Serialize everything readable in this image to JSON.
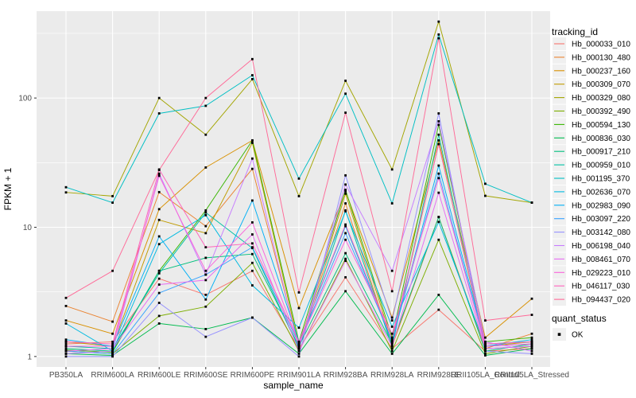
{
  "chart_data": {
    "type": "line",
    "xlabel": "sample_name",
    "ylabel": "FPKM + 1",
    "y_scale": "log10",
    "y_ticks": [
      1,
      10,
      100
    ],
    "ylim": [
      0.83,
      470
    ],
    "grid": true,
    "panel_bg": "#EBEBEB",
    "grid_color": "#FFFFFF",
    "point_color": "#000000",
    "categories": [
      "PB350LA",
      "RRIM600LA",
      "RRIM600LE",
      "RRIM600SE",
      "RRIM600PE",
      "RRIM901LA",
      "RRIM928BA",
      "RRIM928LA",
      "RRIM928LE",
      "RRII105LA_Control",
      "RRII105LA_Stressed"
    ],
    "legend": {
      "title": "tracking_id",
      "position": "right"
    },
    "quant_legend": {
      "title": "quant_status",
      "items": [
        {
          "label": "OK",
          "marker": "black-square"
        }
      ]
    },
    "series": [
      {
        "name": "Hb_000033_010",
        "color": "#F8766D",
        "values": [
          1.25,
          1.3,
          4.0,
          3.0,
          4.6,
          1.15,
          4.1,
          1.15,
          2.3,
          1.1,
          1.15
        ]
      },
      {
        "name": "Hb_000130_480",
        "color": "#EA8331",
        "values": [
          2.46,
          1.86,
          18.7,
          10.2,
          28.3,
          1.2,
          15.3,
          1.2,
          12,
          1.15,
          1.5
        ]
      },
      {
        "name": "Hb_000237_160",
        "color": "#D89000",
        "values": [
          1.9,
          1.5,
          13.8,
          29,
          47,
          2.37,
          19,
          2.0,
          47,
          1.4,
          2.8
        ]
      },
      {
        "name": "Hb_000309_070",
        "color": "#C09B00",
        "values": [
          1.3,
          1.2,
          11.4,
          9.0,
          45,
          1.2,
          18.2,
          1.3,
          44,
          1.2,
          1.3
        ]
      },
      {
        "name": "Hb_000329_080",
        "color": "#A3A500",
        "values": [
          18.6,
          17.4,
          100,
          52,
          140,
          17.4,
          136,
          28,
          390,
          17.5,
          15.5
        ]
      },
      {
        "name": "Hb_000392_490",
        "color": "#7CAE00",
        "values": [
          1.1,
          1.05,
          2.06,
          2.43,
          5.3,
          1.1,
          5.7,
          1.1,
          8.0,
          1.05,
          1.2
        ]
      },
      {
        "name": "Hb_000594_130",
        "color": "#39B600",
        "values": [
          1.12,
          1.08,
          4.6,
          13.5,
          47,
          1.3,
          19.5,
          1.4,
          62,
          1.3,
          1.4
        ]
      },
      {
        "name": "Hb_000836_030",
        "color": "#00BB4E",
        "values": [
          1.05,
          1.02,
          1.8,
          1.63,
          2.0,
          1.05,
          3.2,
          1.05,
          3.0,
          1.02,
          1.15
        ]
      },
      {
        "name": "Hb_000917_210",
        "color": "#00BF7D",
        "values": [
          1.15,
          1.1,
          4.6,
          5.8,
          6.2,
          1.2,
          6.3,
          1.25,
          12,
          1.1,
          1.25
        ]
      },
      {
        "name": "Hb_000959_010",
        "color": "#00C1A3",
        "values": [
          1.2,
          1.15,
          4.4,
          13.0,
          6.9,
          1.15,
          13.5,
          1.2,
          52,
          1.15,
          1.2
        ]
      },
      {
        "name": "Hb_001195_370",
        "color": "#00BFC4",
        "values": [
          20.4,
          15.5,
          76,
          87,
          150,
          23.8,
          108,
          15.3,
          310,
          21.7,
          15.5
        ]
      },
      {
        "name": "Hb_002636_070",
        "color": "#00BAE0",
        "values": [
          1.8,
          1.1,
          7.4,
          12.4,
          3.55,
          1.67,
          13.3,
          1.7,
          11,
          1.2,
          1.35
        ]
      },
      {
        "name": "Hb_002983_090",
        "color": "#00B0F6",
        "values": [
          1.35,
          1.2,
          8.5,
          2.76,
          16.1,
          1.3,
          10.2,
          1.3,
          30,
          1.25,
          1.3
        ]
      },
      {
        "name": "Hb_003097_220",
        "color": "#35A2FF",
        "values": [
          1.1,
          1.05,
          3.1,
          4.3,
          7.0,
          1.25,
          9.0,
          1.35,
          26,
          1.2,
          1.25
        ]
      },
      {
        "name": "Hb_003142_080",
        "color": "#9590FF",
        "values": [
          1.0,
          1.0,
          2.6,
          1.42,
          2.0,
          1.0,
          25.2,
          1.9,
          76,
          1.1,
          1.05
        ]
      },
      {
        "name": "Hb_006198_040",
        "color": "#C77CFF",
        "values": [
          1.05,
          1.1,
          26,
          4.3,
          34,
          1.15,
          21.4,
          4.6,
          66,
          1.3,
          1.1
        ]
      },
      {
        "name": "Hb_008461_070",
        "color": "#E76BF3",
        "values": [
          1.1,
          1.15,
          3.6,
          3.9,
          8.8,
          1.1,
          5.5,
          1.2,
          18.5,
          1.15,
          1.2
        ]
      },
      {
        "name": "Hb_029223_010",
        "color": "#FA62DB",
        "values": [
          1.2,
          1.2,
          25,
          4.6,
          10.9,
          1.25,
          8.0,
          1.5,
          24,
          1.2,
          1.25
        ]
      },
      {
        "name": "Hb_046117_030",
        "color": "#FF62BC",
        "values": [
          1.3,
          1.25,
          28,
          7.0,
          7.5,
          1.3,
          10.5,
          1.35,
          44,
          1.25,
          1.3
        ]
      },
      {
        "name": "Hb_094437_020",
        "color": "#FF6A98",
        "values": [
          2.84,
          4.6,
          27.7,
          100,
          200,
          3.13,
          77,
          3.2,
          290,
          1.9,
          2.1
        ]
      }
    ]
  }
}
